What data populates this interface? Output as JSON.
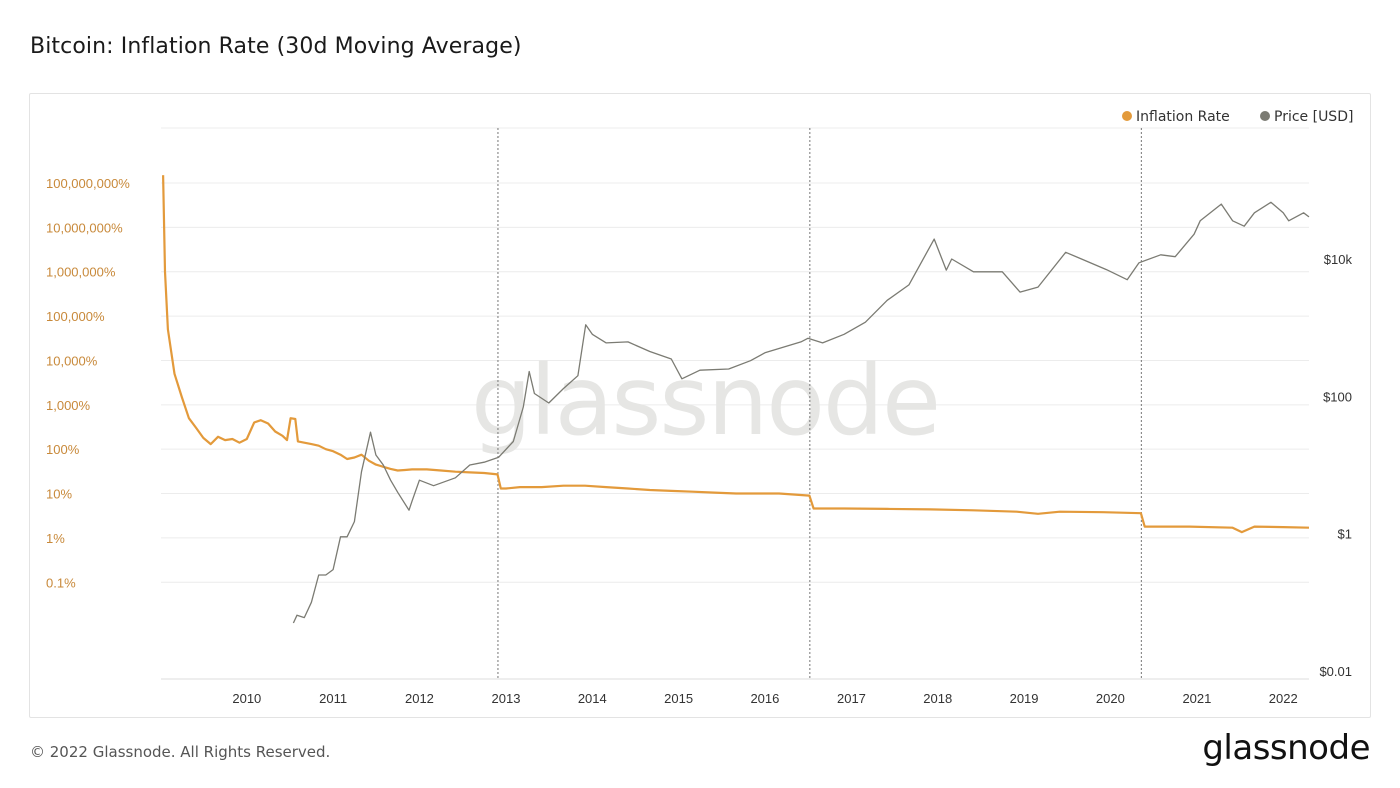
{
  "title": "Bitcoin: Inflation Rate (30d Moving Average)",
  "footer": "© 2022 Glassnode. All Rights Reserved.",
  "brand": "glassnode",
  "watermark": "glassnode",
  "colors": {
    "inflation": "#e39a3b",
    "price": "#7b7b73",
    "left_tick": "#c8893a",
    "grid": "#ececec"
  },
  "chart_data": {
    "type": "line",
    "x_ticks": [
      "2010",
      "2011",
      "2012",
      "2013",
      "2014",
      "2015",
      "2016",
      "2017",
      "2018",
      "2019",
      "2020",
      "2021",
      "2022"
    ],
    "x_range": [
      "2009-01-03",
      "2022-04-20"
    ],
    "y_left": {
      "scale": "log",
      "ticks": [
        "100,000,000%",
        "10,000,000%",
        "1,000,000%",
        "100,000%",
        "10,000%",
        "1,000%",
        "100%",
        "10%",
        "1%",
        "0.1%"
      ]
    },
    "y_right": {
      "scale": "log",
      "ticks": [
        "$10k",
        "$100",
        "$1",
        "$0.01"
      ]
    },
    "halvings": [
      "2012-11-28",
      "2016-07-09",
      "2020-05-11"
    ],
    "legend": [
      "Inflation Rate",
      "Price [USD]"
    ],
    "legend_position": "top-right",
    "series": [
      {
        "name": "Inflation Rate",
        "axis": "left",
        "unit": "%",
        "points": [
          [
            "2009-01-12",
            150000000
          ],
          [
            "2009-01-20",
            1000000
          ],
          [
            "2009-02-01",
            50000
          ],
          [
            "2009-03-01",
            5000
          ],
          [
            "2009-04-01",
            1500
          ],
          [
            "2009-05-01",
            500
          ],
          [
            "2009-06-01",
            300
          ],
          [
            "2009-07-01",
            180
          ],
          [
            "2009-08-01",
            130
          ],
          [
            "2009-09-01",
            190
          ],
          [
            "2009-10-01",
            160
          ],
          [
            "2009-11-01",
            170
          ],
          [
            "2009-12-01",
            140
          ],
          [
            "2010-01-01",
            170
          ],
          [
            "2010-02-01",
            400
          ],
          [
            "2010-03-01",
            450
          ],
          [
            "2010-04-01",
            380
          ],
          [
            "2010-05-01",
            250
          ],
          [
            "2010-06-01",
            200
          ],
          [
            "2010-06-20",
            160
          ],
          [
            "2010-07-05",
            500
          ],
          [
            "2010-07-25",
            480
          ],
          [
            "2010-08-05",
            150
          ],
          [
            "2010-09-01",
            140
          ],
          [
            "2010-10-01",
            130
          ],
          [
            "2010-11-01",
            120
          ],
          [
            "2010-12-01",
            100
          ],
          [
            "2011-01-01",
            90
          ],
          [
            "2011-02-01",
            75
          ],
          [
            "2011-03-01",
            60
          ],
          [
            "2011-04-01",
            65
          ],
          [
            "2011-05-01",
            75
          ],
          [
            "2011-06-01",
            55
          ],
          [
            "2011-07-01",
            45
          ],
          [
            "2011-08-01",
            40
          ],
          [
            "2011-09-01",
            36
          ],
          [
            "2011-10-01",
            33
          ],
          [
            "2011-11-01",
            34
          ],
          [
            "2011-12-01",
            35
          ],
          [
            "2012-02-01",
            35
          ],
          [
            "2012-04-01",
            33
          ],
          [
            "2012-06-01",
            31
          ],
          [
            "2012-08-01",
            30
          ],
          [
            "2012-10-01",
            29
          ],
          [
            "2012-11-26",
            27
          ],
          [
            "2012-12-10",
            13
          ],
          [
            "2013-01-01",
            13
          ],
          [
            "2013-03-01",
            14
          ],
          [
            "2013-06-01",
            14
          ],
          [
            "2013-09-01",
            15
          ],
          [
            "2013-12-01",
            15
          ],
          [
            "2014-03-01",
            14
          ],
          [
            "2014-06-01",
            13
          ],
          [
            "2014-09-01",
            12
          ],
          [
            "2014-12-01",
            11.5
          ],
          [
            "2015-03-01",
            11
          ],
          [
            "2015-06-01",
            10.5
          ],
          [
            "2015-09-01",
            10
          ],
          [
            "2015-12-01",
            10
          ],
          [
            "2016-03-01",
            10
          ],
          [
            "2016-07-07",
            9
          ],
          [
            "2016-07-25",
            4.6
          ],
          [
            "2016-12-01",
            4.6
          ],
          [
            "2017-06-01",
            4.5
          ],
          [
            "2017-12-01",
            4.4
          ],
          [
            "2018-06-01",
            4.2
          ],
          [
            "2018-12-01",
            3.9
          ],
          [
            "2019-03-01",
            3.5
          ],
          [
            "2019-06-01",
            3.9
          ],
          [
            "2019-12-01",
            3.8
          ],
          [
            "2020-05-09",
            3.6
          ],
          [
            "2020-05-25",
            1.8
          ],
          [
            "2020-12-01",
            1.8
          ],
          [
            "2021-06-01",
            1.7
          ],
          [
            "2021-07-10",
            1.35
          ],
          [
            "2021-09-01",
            1.8
          ],
          [
            "2022-01-01",
            1.75
          ],
          [
            "2022-04-20",
            1.7
          ]
        ]
      },
      {
        "name": "Price [USD]",
        "axis": "right",
        "unit": "USD",
        "points": [
          [
            "2010-07-17",
            0.05
          ],
          [
            "2010-08-01",
            0.065
          ],
          [
            "2010-09-01",
            0.06
          ],
          [
            "2010-10-01",
            0.1
          ],
          [
            "2010-11-01",
            0.25
          ],
          [
            "2010-12-01",
            0.25
          ],
          [
            "2011-01-01",
            0.3
          ],
          [
            "2011-02-01",
            0.9
          ],
          [
            "2011-03-01",
            0.9
          ],
          [
            "2011-04-01",
            1.5
          ],
          [
            "2011-05-01",
            8
          ],
          [
            "2011-06-08",
            30
          ],
          [
            "2011-07-01",
            14
          ],
          [
            "2011-08-01",
            10
          ],
          [
            "2011-09-01",
            6
          ],
          [
            "2011-10-01",
            4
          ],
          [
            "2011-11-18",
            2.2
          ],
          [
            "2011-12-01",
            3
          ],
          [
            "2012-01-01",
            6
          ],
          [
            "2012-03-01",
            5
          ],
          [
            "2012-06-01",
            6.5
          ],
          [
            "2012-08-01",
            10
          ],
          [
            "2012-10-01",
            11
          ],
          [
            "2012-12-01",
            13
          ],
          [
            "2013-02-01",
            22
          ],
          [
            "2013-03-15",
            70
          ],
          [
            "2013-04-09",
            230
          ],
          [
            "2013-05-01",
            110
          ],
          [
            "2013-07-01",
            80
          ],
          [
            "2013-09-01",
            130
          ],
          [
            "2013-11-01",
            200
          ],
          [
            "2013-12-04",
            1100
          ],
          [
            "2014-01-01",
            800
          ],
          [
            "2014-03-01",
            600
          ],
          [
            "2014-06-01",
            620
          ],
          [
            "2014-09-01",
            450
          ],
          [
            "2014-12-01",
            350
          ],
          [
            "2015-01-15",
            180
          ],
          [
            "2015-04-01",
            240
          ],
          [
            "2015-08-01",
            250
          ],
          [
            "2015-11-01",
            330
          ],
          [
            "2016-01-01",
            430
          ],
          [
            "2016-06-01",
            620
          ],
          [
            "2016-07-01",
            700
          ],
          [
            "2016-09-01",
            600
          ],
          [
            "2016-12-01",
            800
          ],
          [
            "2017-03-01",
            1200
          ],
          [
            "2017-06-01",
            2500
          ],
          [
            "2017-09-01",
            4200
          ],
          [
            "2017-12-17",
            19500
          ],
          [
            "2018-02-06",
            6900
          ],
          [
            "2018-03-01",
            10000
          ],
          [
            "2018-06-01",
            6500
          ],
          [
            "2018-10-01",
            6500
          ],
          [
            "2018-12-15",
            3300
          ],
          [
            "2019-03-01",
            3900
          ],
          [
            "2019-06-26",
            12500
          ],
          [
            "2019-09-01",
            10000
          ],
          [
            "2019-12-15",
            7000
          ],
          [
            "2020-03-12",
            5000
          ],
          [
            "2020-05-01",
            8800
          ],
          [
            "2020-08-01",
            11500
          ],
          [
            "2020-10-01",
            10800
          ],
          [
            "2020-12-20",
            23000
          ],
          [
            "2021-01-15",
            36000
          ],
          [
            "2021-04-14",
            63000
          ],
          [
            "2021-06-01",
            36000
          ],
          [
            "2021-07-20",
            30000
          ],
          [
            "2021-09-01",
            47000
          ],
          [
            "2021-11-10",
            67000
          ],
          [
            "2022-01-01",
            47000
          ],
          [
            "2022-01-24",
            36000
          ],
          [
            "2022-03-28",
            47000
          ],
          [
            "2022-04-20",
            41000
          ]
        ]
      }
    ]
  }
}
